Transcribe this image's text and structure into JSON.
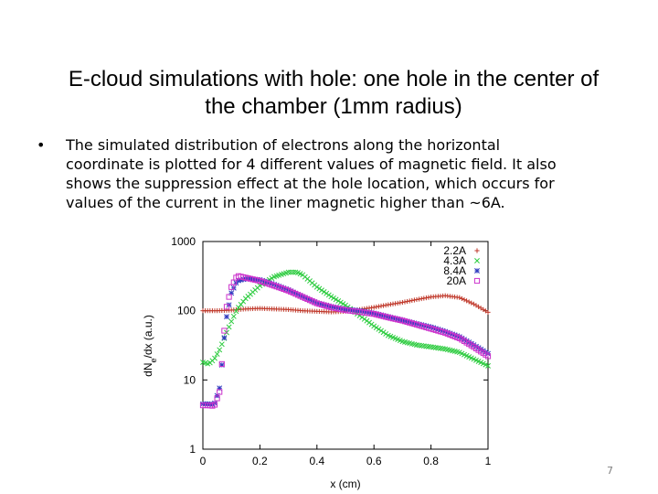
{
  "slide": {
    "title_line1": "E-cloud simulations with hole: one hole in the center of",
    "title_line2": "the chamber (1mm radius)",
    "bullet_symbol": "•",
    "bullet_lines": [
      "The simulated distribution of electrons along the horizontal",
      "coordinate is plotted for 4 different values of magnetic field. It also",
      "shows the suppression effect at the hole location, which occurs for",
      "values of the current in the liner magnetic higher than ~6A."
    ],
    "page_number": "7"
  },
  "chart_data": {
    "type": "scatter",
    "xlabel": "x (cm)",
    "ylabel_main": "dN",
    "ylabel_sub": "e",
    "ylabel_rest": "/dx (a.u.)",
    "xlim": [
      0,
      1
    ],
    "ylim": [
      1,
      1000
    ],
    "yscale": "log",
    "grid": false,
    "legend_position": "top-right",
    "x_ticks": [
      0,
      0.2,
      0.4,
      0.6,
      0.8,
      1
    ],
    "x_tick_labels": [
      "0",
      "0.2",
      "0.4",
      "0.6",
      "0.8",
      "1"
    ],
    "y_ticks": [
      1,
      10,
      100,
      1000
    ],
    "y_tick_labels": [
      "1",
      "10",
      "100",
      "1000"
    ],
    "series": [
      {
        "name": "2.2A",
        "color": "#c0392b",
        "marker": "plus",
        "points": [
          [
            0,
            100
          ],
          [
            0.05,
            100
          ],
          [
            0.1,
            102
          ],
          [
            0.15,
            106
          ],
          [
            0.2,
            108
          ],
          [
            0.25,
            106
          ],
          [
            0.3,
            104
          ],
          [
            0.35,
            100
          ],
          [
            0.4,
            98
          ],
          [
            0.45,
            96
          ],
          [
            0.5,
            98
          ],
          [
            0.55,
            104
          ],
          [
            0.6,
            112
          ],
          [
            0.65,
            122
          ],
          [
            0.7,
            132
          ],
          [
            0.75,
            145
          ],
          [
            0.8,
            158
          ],
          [
            0.85,
            165
          ],
          [
            0.9,
            155
          ],
          [
            0.95,
            125
          ],
          [
            1.0,
            95
          ]
        ]
      },
      {
        "name": "4.3A",
        "color": "#2ecc40",
        "marker": "x",
        "points": [
          [
            0,
            18
          ],
          [
            0.02,
            17
          ],
          [
            0.04,
            20
          ],
          [
            0.06,
            28
          ],
          [
            0.08,
            45
          ],
          [
            0.1,
            70
          ],
          [
            0.12,
            105
          ],
          [
            0.15,
            150
          ],
          [
            0.2,
            230
          ],
          [
            0.25,
            310
          ],
          [
            0.3,
            360
          ],
          [
            0.33,
            360
          ],
          [
            0.35,
            330
          ],
          [
            0.4,
            220
          ],
          [
            0.45,
            160
          ],
          [
            0.5,
            120
          ],
          [
            0.55,
            85
          ],
          [
            0.6,
            60
          ],
          [
            0.65,
            44
          ],
          [
            0.7,
            36
          ],
          [
            0.75,
            32
          ],
          [
            0.8,
            30
          ],
          [
            0.85,
            28
          ],
          [
            0.9,
            25
          ],
          [
            0.95,
            20
          ],
          [
            1.0,
            16
          ]
        ]
      },
      {
        "name": "8.4A",
        "color": "#2f3bbf",
        "marker": "star",
        "points": [
          [
            0,
            4.5
          ],
          [
            0.02,
            4.5
          ],
          [
            0.04,
            4.4
          ],
          [
            0.06,
            8
          ],
          [
            0.08,
            70
          ],
          [
            0.1,
            180
          ],
          [
            0.12,
            270
          ],
          [
            0.15,
            290
          ],
          [
            0.2,
            280
          ],
          [
            0.25,
            240
          ],
          [
            0.3,
            200
          ],
          [
            0.35,
            160
          ],
          [
            0.4,
            130
          ],
          [
            0.45,
            115
          ],
          [
            0.5,
            105
          ],
          [
            0.55,
            100
          ],
          [
            0.6,
            92
          ],
          [
            0.65,
            82
          ],
          [
            0.7,
            73
          ],
          [
            0.75,
            65
          ],
          [
            0.8,
            58
          ],
          [
            0.85,
            50
          ],
          [
            0.9,
            42
          ],
          [
            0.95,
            32
          ],
          [
            1.0,
            24
          ]
        ]
      },
      {
        "name": "20A",
        "color": "#cc33cc",
        "marker": "square",
        "points": [
          [
            0,
            4.3
          ],
          [
            0.02,
            4.3
          ],
          [
            0.04,
            4.2
          ],
          [
            0.06,
            7
          ],
          [
            0.08,
            100
          ],
          [
            0.1,
            220
          ],
          [
            0.12,
            320
          ],
          [
            0.15,
            300
          ],
          [
            0.2,
            270
          ],
          [
            0.25,
            230
          ],
          [
            0.3,
            195
          ],
          [
            0.35,
            158
          ],
          [
            0.4,
            128
          ],
          [
            0.45,
            112
          ],
          [
            0.5,
            102
          ],
          [
            0.55,
            96
          ],
          [
            0.6,
            90
          ],
          [
            0.65,
            80
          ],
          [
            0.7,
            72
          ],
          [
            0.75,
            63
          ],
          [
            0.8,
            55
          ],
          [
            0.85,
            48
          ],
          [
            0.9,
            40
          ],
          [
            0.95,
            30
          ],
          [
            1.0,
            22
          ]
        ]
      }
    ]
  }
}
